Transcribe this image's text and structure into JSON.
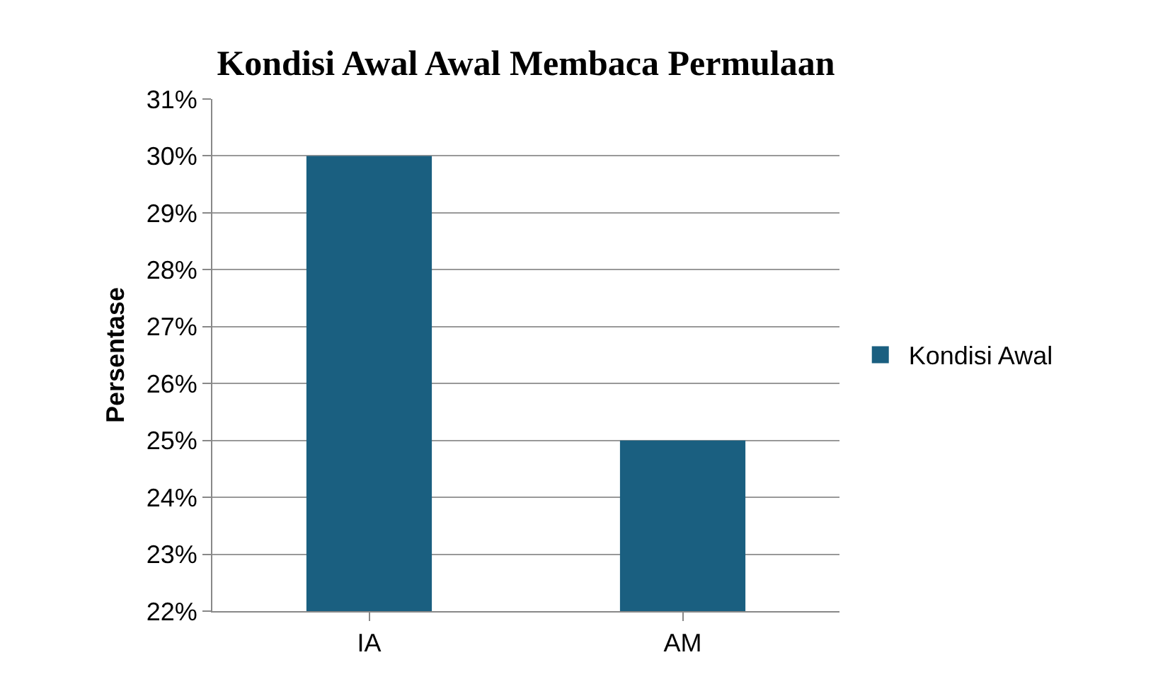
{
  "chart_data": {
    "type": "bar",
    "title": "Kondisi Awal Awal Membaca Permulaan",
    "ylabel": "Persentase",
    "categories": [
      "IA",
      "AM"
    ],
    "series": [
      {
        "name": "Kondisi Awal",
        "color": "#1a5f80",
        "values": [
          30,
          25
        ]
      }
    ],
    "ylim": [
      22,
      31
    ],
    "yticks": [
      {
        "value": 22,
        "label": "22%"
      },
      {
        "value": 23,
        "label": "23%"
      },
      {
        "value": 24,
        "label": "24%"
      },
      {
        "value": 25,
        "label": "25%"
      },
      {
        "value": 26,
        "label": "26%"
      },
      {
        "value": 27,
        "label": "27%"
      },
      {
        "value": 28,
        "label": "28%"
      },
      {
        "value": 29,
        "label": "29%"
      },
      {
        "value": 30,
        "label": "30%"
      },
      {
        "value": 31,
        "label": "31%"
      }
    ],
    "grid": "y",
    "legend": "right"
  }
}
